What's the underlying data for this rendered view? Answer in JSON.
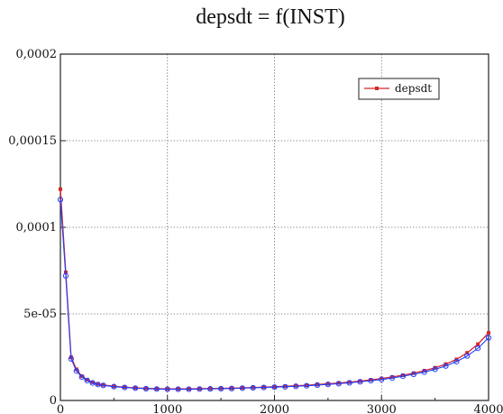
{
  "chart_data": {
    "type": "line",
    "title": "depsdt = f(INST)",
    "xlabel": "",
    "ylabel": "",
    "xlim": [
      0,
      4000
    ],
    "ylim": [
      0,
      0.0002
    ],
    "grid": true,
    "legend_position": "top-right",
    "x_ticks": [
      0,
      1000,
      2000,
      3000,
      4000
    ],
    "x_tick_labels": [
      "0",
      "1000",
      "2000",
      "3000",
      "4000"
    ],
    "y_ticks": [
      0,
      5e-05,
      0.0001,
      0.00015,
      0.0002
    ],
    "y_tick_labels": [
      "0",
      "5e-05",
      "0,0001",
      "0,00015",
      "0,0002"
    ],
    "series": [
      {
        "name": "depsdt",
        "line_color": "#d62728",
        "marker_color": "#d62728",
        "x": [
          0,
          50,
          100,
          150,
          200,
          250,
          300,
          350,
          400,
          500,
          600,
          700,
          800,
          900,
          1000,
          1100,
          1200,
          1300,
          1400,
          1500,
          1600,
          1700,
          1800,
          1900,
          2000,
          2100,
          2200,
          2300,
          2400,
          2500,
          2600,
          2700,
          2800,
          2900,
          3000,
          3100,
          3200,
          3300,
          3400,
          3500,
          3600,
          3700,
          3800,
          3900,
          4000
        ],
        "y": [
          0.000122,
          7.4e-05,
          2.5e-05,
          1.8e-05,
          1.4e-05,
          1.2e-05,
          1.05e-05,
          9.5e-06,
          9e-06,
          8.2e-06,
          7.7e-06,
          7.3e-06,
          7e-06,
          6.8e-06,
          6.7e-06,
          6.7e-06,
          6.7e-06,
          6.8e-06,
          6.9e-06,
          7e-06,
          7.1e-06,
          7.3e-06,
          7.5e-06,
          7.7e-06,
          7.9e-06,
          8.2e-06,
          8.5e-06,
          8.8e-06,
          9.2e-06,
          9.6e-06,
          1.01e-05,
          1.06e-05,
          1.12e-05,
          1.19e-05,
          1.27e-05,
          1.36e-05,
          1.46e-05,
          1.58e-05,
          1.72e-05,
          1.89e-05,
          2.1e-05,
          2.37e-05,
          2.75e-05,
          3.25e-05,
          3.9e-05
        ]
      },
      {
        "name": "",
        "line_color": "#1f3fff",
        "marker_color": "#1f3fff",
        "x": [
          0,
          50,
          100,
          150,
          200,
          250,
          300,
          350,
          400,
          500,
          600,
          700,
          800,
          900,
          1000,
          1100,
          1200,
          1300,
          1400,
          1500,
          1600,
          1700,
          1800,
          1900,
          2000,
          2100,
          2200,
          2300,
          2400,
          2500,
          2600,
          2700,
          2800,
          2900,
          3000,
          3100,
          3200,
          3300,
          3400,
          3500,
          3600,
          3700,
          3800,
          3900,
          4000
        ],
        "y": [
          0.000116,
          7.2e-05,
          2.4e-05,
          1.7e-05,
          1.35e-05,
          1.15e-05,
          1.01e-05,
          9.2e-06,
          8.7e-06,
          8e-06,
          7.5e-06,
          7.1e-06,
          6.8e-06,
          6.6e-06,
          6.5e-06,
          6.5e-06,
          6.5e-06,
          6.6e-06,
          6.7e-06,
          6.8e-06,
          6.9e-06,
          7.1e-06,
          7.3e-06,
          7.5e-06,
          7.7e-06,
          7.9e-06,
          8.2e-06,
          8.5e-06,
          8.9e-06,
          9.3e-06,
          9.7e-06,
          1.02e-05,
          1.08e-05,
          1.14e-05,
          1.21e-05,
          1.3e-05,
          1.4e-05,
          1.51e-05,
          1.64e-05,
          1.8e-05,
          1.99e-05,
          2.24e-05,
          2.57e-05,
          3.01e-05,
          3.62e-05
        ]
      }
    ]
  }
}
